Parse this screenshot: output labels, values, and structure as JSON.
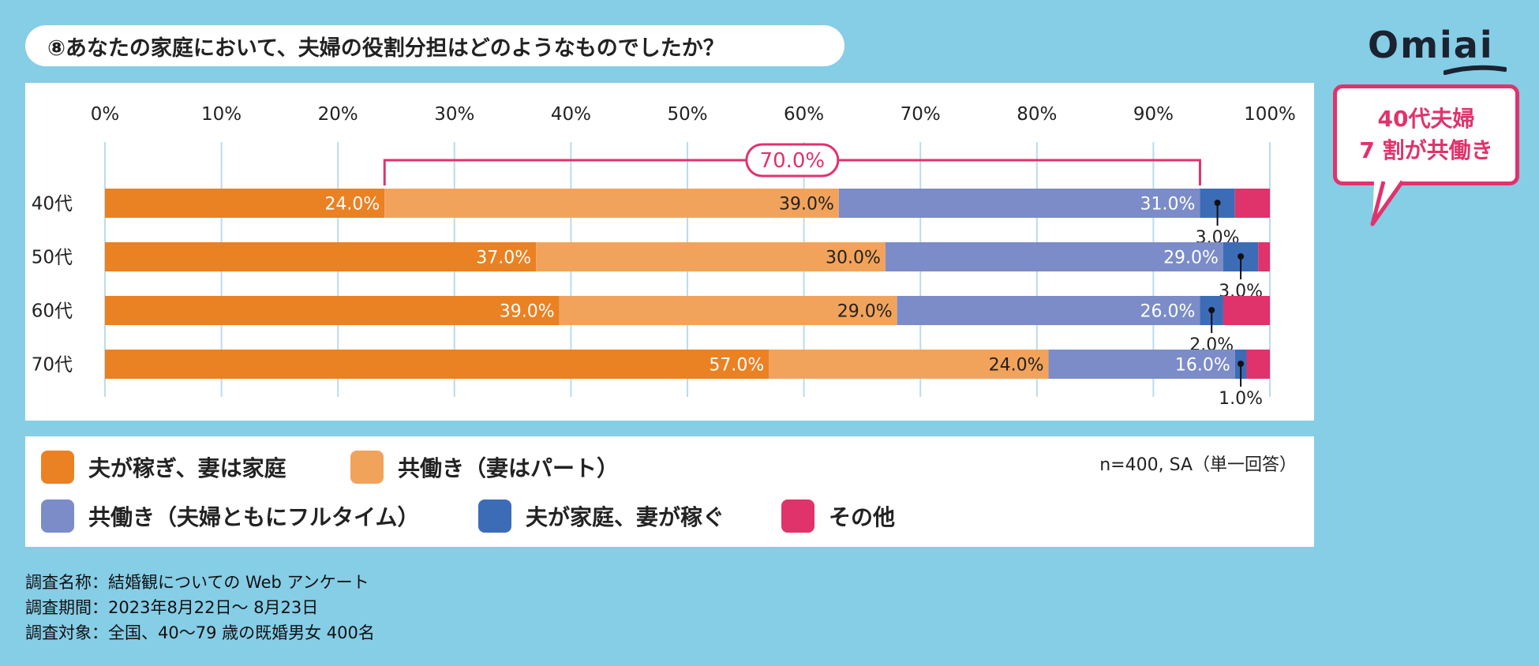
{
  "title": "⑧あなたの家庭において、夫婦の役割分担はどのようなものでしたか？",
  "logo": {
    "text": "Omiai"
  },
  "callout": {
    "line1": "40代夫婦",
    "line2": "7 割が共働き"
  },
  "bracket_label": "70.0%",
  "sample_note": "n=400, SA（単一回答）",
  "footnotes": [
    "調査名称：結婚観についての Web アンケート",
    "調査期間：2023年8月22日～ 8月23日",
    "調査対象：全国、40～79 歳の既婚男女 400名"
  ],
  "colors": {
    "background": "#86cde6",
    "s1": "#ea8122",
    "s2": "#f2a35b",
    "s3": "#7b8cc8",
    "s4": "#3d6cb7",
    "s5": "#e0336b",
    "accent": "#e0336b"
  },
  "chart_data": {
    "type": "bar",
    "orientation": "horizontal",
    "stacked": true,
    "categories": [
      "40代",
      "50代",
      "60代",
      "70代"
    ],
    "x_ticks": [
      "0%",
      "10%",
      "20%",
      "30%",
      "40%",
      "50%",
      "60%",
      "70%",
      "80%",
      "90%",
      "100%"
    ],
    "xlim": [
      0,
      100
    ],
    "series": [
      {
        "name": "夫が稼ぎ、妻は家庭",
        "values": [
          24.0,
          37.0,
          39.0,
          57.0
        ],
        "labels": [
          "24.0%",
          "37.0%",
          "39.0%",
          "57.0%"
        ]
      },
      {
        "name": "共働き（妻はパート）",
        "values": [
          39.0,
          30.0,
          29.0,
          24.0
        ],
        "labels": [
          "39.0%",
          "30.0%",
          "29.0%",
          "24.0%"
        ]
      },
      {
        "name": "共働き（夫婦ともにフルタイム）",
        "values": [
          31.0,
          29.0,
          26.0,
          16.0
        ],
        "labels": [
          "31.0%",
          "29.0%",
          "26.0%",
          "16.0%"
        ]
      },
      {
        "name": "夫が家庭、妻が稼ぐ",
        "values": [
          3.0,
          3.0,
          2.0,
          1.0
        ],
        "labels": [
          "3.0%",
          "3.0%",
          "2.0%",
          "1.0%"
        ]
      },
      {
        "name": "その他",
        "values": [
          3.0,
          1.0,
          4.0,
          2.0
        ]
      }
    ],
    "annotation": {
      "category": "40代",
      "from": 24.0,
      "to": 94.0,
      "label": "70.0%"
    }
  }
}
